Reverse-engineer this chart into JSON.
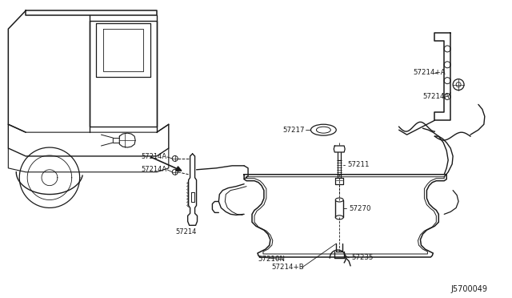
{
  "bg_color": "#ffffff",
  "line_color": "#1a1a1a",
  "label_color": "#1a1a1a",
  "diagram_id": "J5700049",
  "figsize": [
    6.4,
    3.72
  ],
  "dpi": 100,
  "labels": {
    "57214A_1": "57214A",
    "57214A_2": "57214A",
    "57214": "57214",
    "57217": "57217",
    "57211": "57211",
    "57270": "57270",
    "57210N": "57210N",
    "57214B": "57214+B",
    "57235": "57235",
    "57214_plus_A": "57214+A",
    "57214A_top": "57214A",
    "diagram_id": "J5700049"
  }
}
